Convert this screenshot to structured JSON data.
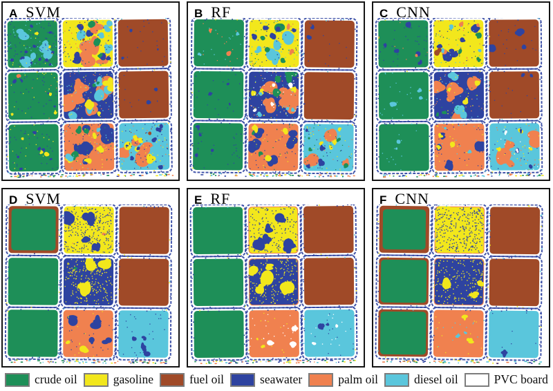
{
  "figure": {
    "classes": [
      {
        "key": "crude",
        "label": "crude oil",
        "color": "#1E8F58"
      },
      {
        "key": "gas",
        "label": "gasoline",
        "color": "#F2E71C"
      },
      {
        "key": "fuel",
        "label": "fuel oil",
        "color": "#A04A28"
      },
      {
        "key": "sea",
        "label": "seawater",
        "color": "#2E43A0"
      },
      {
        "key": "palm",
        "label": "palm oil",
        "color": "#F0814F"
      },
      {
        "key": "diesel",
        "label": "diesel oil",
        "color": "#5AC6DC"
      },
      {
        "key": "pvc",
        "label": "PVC board",
        "color": "#FFFFFF"
      }
    ],
    "panels": [
      {
        "id": "A",
        "method": "SVM",
        "cells": [
          {
            "base": "crude",
            "patches": [
              {
                "k": "diesel",
                "n": 6,
                "r": 5
              },
              {
                "k": "sea",
                "n": 12,
                "r": 1.5
              },
              {
                "k": "gas",
                "n": 2,
                "r": 2
              }
            ]
          },
          {
            "base": "gas",
            "patches": [
              {
                "k": "palm",
                "n": 5,
                "r": 8
              },
              {
                "k": "diesel",
                "n": 6,
                "r": 4
              },
              {
                "k": "sea",
                "n": 7,
                "r": 3
              },
              {
                "k": "crude",
                "n": 3,
                "r": 3
              },
              {
                "k": "fuel",
                "n": 1,
                "r": 2
              }
            ]
          },
          {
            "base": "fuel",
            "patches": [
              {
                "k": "sea",
                "n": 3,
                "r": 2
              }
            ]
          },
          {
            "base": "crude",
            "patches": [
              {
                "k": "palm",
                "n": 1,
                "r": 4
              },
              {
                "k": "gas",
                "n": 3,
                "r": 2
              },
              {
                "k": "sea",
                "n": 5,
                "r": 1.5
              }
            ]
          },
          {
            "base": "sea",
            "patches": [
              {
                "k": "palm",
                "n": 5,
                "r": 8
              },
              {
                "k": "diesel",
                "n": 5,
                "r": 5
              },
              {
                "k": "gas",
                "n": 4,
                "r": 4
              },
              {
                "k": "crude",
                "n": 2,
                "r": 3
              }
            ]
          },
          {
            "base": "fuel",
            "patches": [
              {
                "k": "sea",
                "n": 2,
                "r": 2
              }
            ]
          },
          {
            "base": "crude",
            "patches": [
              {
                "k": "sea",
                "n": 6,
                "r": 1.5
              },
              {
                "k": "gas",
                "n": 3,
                "r": 2
              }
            ]
          },
          {
            "base": "palm",
            "patches": [
              {
                "k": "sea",
                "n": 6,
                "r": 6
              },
              {
                "k": "crude",
                "n": 3,
                "r": 4
              },
              {
                "k": "gas",
                "n": 4,
                "r": 3
              },
              {
                "k": "diesel",
                "n": 2,
                "r": 3
              }
            ]
          },
          {
            "base": "diesel",
            "patches": [
              {
                "k": "palm",
                "n": 4,
                "r": 7
              },
              {
                "k": "gas",
                "n": 5,
                "r": 4
              },
              {
                "k": "sea",
                "n": 8,
                "r": 2
              },
              {
                "k": "fuel",
                "n": 1,
                "r": 2
              }
            ]
          }
        ]
      },
      {
        "id": "B",
        "method": "RF",
        "cells": [
          {
            "base": "crude",
            "patches": [
              {
                "k": "palm",
                "n": 2,
                "r": 2
              },
              {
                "k": "diesel",
                "n": 2,
                "r": 2
              }
            ]
          },
          {
            "base": "gas",
            "patches": [
              {
                "k": "diesel",
                "n": 5,
                "r": 5
              },
              {
                "k": "crude",
                "n": 4,
                "r": 4
              },
              {
                "k": "sea",
                "n": 6,
                "r": 3
              },
              {
                "k": "palm",
                "n": 2,
                "r": 3
              }
            ]
          },
          {
            "base": "fuel",
            "patches": [
              {
                "k": "sea",
                "n": 2,
                "r": 2
              }
            ]
          },
          {
            "base": "crude",
            "patches": [
              {
                "k": "sea",
                "n": 3,
                "r": 1.5
              }
            ]
          },
          {
            "base": "sea",
            "patches": [
              {
                "k": "palm",
                "n": 6,
                "r": 8
              },
              {
                "k": "crude",
                "n": 3,
                "r": 5
              },
              {
                "k": "gas",
                "n": 3,
                "r": 3
              },
              {
                "k": "diesel",
                "n": 4,
                "r": 2
              },
              {
                "k": "pvc",
                "n": 4,
                "r": 2
              }
            ]
          },
          {
            "base": "fuel",
            "patches": []
          },
          {
            "base": "crude",
            "patches": [
              {
                "k": "sea",
                "n": 4,
                "r": 2
              }
            ]
          },
          {
            "base": "palm",
            "patches": [
              {
                "k": "sea",
                "n": 6,
                "r": 5
              },
              {
                "k": "gas",
                "n": 3,
                "r": 3
              },
              {
                "k": "crude",
                "n": 2,
                "r": 2
              }
            ]
          },
          {
            "base": "diesel",
            "patches": [
              {
                "k": "palm",
                "n": 3,
                "r": 6
              },
              {
                "k": "gas",
                "n": 4,
                "r": 3
              },
              {
                "k": "crude",
                "n": 4,
                "r": 2
              },
              {
                "k": "sea",
                "n": 4,
                "r": 2
              }
            ]
          }
        ]
      },
      {
        "id": "C",
        "method": "CNN",
        "cells": [
          {
            "base": "crude",
            "patches": [
              {
                "k": "sea",
                "n": 5,
                "r": 3
              },
              {
                "k": "palm",
                "n": 1,
                "r": 2
              }
            ]
          },
          {
            "base": "gas",
            "patches": [
              {
                "k": "sea",
                "n": 5,
                "r": 4
              },
              {
                "k": "palm",
                "n": 3,
                "r": 3
              },
              {
                "k": "crude",
                "n": 3,
                "r": 3
              },
              {
                "k": "diesel",
                "n": 3,
                "r": 2
              },
              {
                "k": "fuel",
                "n": 1,
                "r": 3
              }
            ]
          },
          {
            "base": "fuel",
            "patches": [
              {
                "k": "sea",
                "n": 3,
                "r": 3
              }
            ]
          },
          {
            "base": "crude",
            "patches": [
              {
                "k": "diesel",
                "n": 3,
                "r": 3
              }
            ]
          },
          {
            "base": "sea",
            "patches": [
              {
                "k": "palm",
                "n": 6,
                "r": 6
              },
              {
                "k": "diesel",
                "n": 3,
                "r": 5
              },
              {
                "k": "gas",
                "n": 3,
                "r": 3
              },
              {
                "k": "crude",
                "n": 2,
                "r": 2
              }
            ]
          },
          {
            "base": "fuel",
            "patches": [
              {
                "k": "sea",
                "n": 2,
                "r": 2
              }
            ]
          },
          {
            "base": "crude",
            "patches": [
              {
                "k": "diesel",
                "n": 2,
                "r": 2
              }
            ]
          },
          {
            "base": "palm",
            "patches": [
              {
                "k": "sea",
                "n": 5,
                "r": 5
              },
              {
                "k": "gas",
                "n": 3,
                "r": 3
              },
              {
                "k": "diesel",
                "n": 2,
                "r": 2
              }
            ]
          },
          {
            "base": "diesel",
            "patches": [
              {
                "k": "palm",
                "n": 4,
                "r": 6
              },
              {
                "k": "gas",
                "n": 3,
                "r": 3
              },
              {
                "k": "sea",
                "n": 3,
                "r": 2
              },
              {
                "k": "pvc",
                "n": 2,
                "r": 2
              }
            ]
          }
        ]
      },
      {
        "id": "D",
        "method": "SVM",
        "cells": [
          {
            "base": "crude",
            "frame": {
              "k": "fuel",
              "w": 5
            },
            "patches": []
          },
          {
            "base": "gas",
            "speckle": {
              "k": "sea",
              "d": 250
            },
            "patches": [
              {
                "k": "sea",
                "n": 4,
                "r": 6
              },
              {
                "k": "palm",
                "n": 1,
                "r": 2
              }
            ]
          },
          {
            "base": "fuel",
            "patches": []
          },
          {
            "base": "crude",
            "patches": []
          },
          {
            "base": "sea",
            "speckle": {
              "k": "gas",
              "d": 200
            },
            "patches": [
              {
                "k": "gas",
                "n": 3,
                "r": 6
              },
              {
                "k": "crude",
                "n": 1,
                "r": 2
              }
            ]
          },
          {
            "base": "fuel",
            "patches": []
          },
          {
            "base": "crude",
            "patches": []
          },
          {
            "base": "palm",
            "patches": [
              {
                "k": "sea",
                "n": 4,
                "r": 5
              },
              {
                "k": "gas",
                "n": 2,
                "r": 3
              }
            ]
          },
          {
            "base": "diesel",
            "patches": [
              {
                "k": "sea",
                "n": 4,
                "r": 3
              }
            ]
          }
        ]
      },
      {
        "id": "E",
        "method": "RF",
        "cells": [
          {
            "base": "crude",
            "patches": []
          },
          {
            "base": "gas",
            "speckle": {
              "k": "sea",
              "d": 120
            },
            "patches": [
              {
                "k": "sea",
                "n": 7,
                "r": 5
              }
            ],
            "frame": {
              "k": "palm",
              "w": 2
            }
          },
          {
            "base": "fuel",
            "patches": []
          },
          {
            "base": "crude",
            "patches": []
          },
          {
            "base": "sea",
            "speckle": {
              "k": "gas",
              "d": 150
            },
            "patches": [
              {
                "k": "gas",
                "n": 6,
                "r": 6
              }
            ],
            "frame": {
              "k": "palm",
              "w": 2
            }
          },
          {
            "base": "fuel",
            "patches": []
          },
          {
            "base": "crude",
            "patches": []
          },
          {
            "base": "palm",
            "patches": [
              {
                "k": "pvc",
                "n": 3,
                "r": 3
              },
              {
                "k": "gas",
                "n": 2,
                "r": 2
              }
            ]
          },
          {
            "base": "diesel",
            "patches": [
              {
                "k": "sea",
                "n": 2,
                "r": 3
              },
              {
                "k": "pvc",
                "n": 2,
                "r": 2
              }
            ]
          }
        ]
      },
      {
        "id": "F",
        "method": "CNN",
        "cells": [
          {
            "base": "crude",
            "frame": {
              "k": "fuel",
              "w": 6
            },
            "patches": []
          },
          {
            "base": "gas",
            "speckle": {
              "k": "sea",
              "d": 300
            },
            "patches": [
              {
                "k": "gas",
                "n": 4,
                "r": 6
              }
            ],
            "frame": {
              "k": "palm",
              "w": 2
            }
          },
          {
            "base": "fuel",
            "patches": []
          },
          {
            "base": "crude",
            "frame": {
              "k": "fuel",
              "w": 4
            },
            "patches": []
          },
          {
            "base": "sea",
            "speckle": {
              "k": "gas",
              "d": 150
            },
            "patches": [
              {
                "k": "gas",
                "n": 3,
                "r": 5
              }
            ],
            "frame": {
              "k": "palm",
              "w": 2
            }
          },
          {
            "base": "fuel",
            "patches": []
          },
          {
            "base": "crude",
            "frame": {
              "k": "fuel",
              "w": 4
            },
            "patches": []
          },
          {
            "base": "palm",
            "patches": [
              {
                "k": "gas",
                "n": 2,
                "r": 3
              },
              {
                "k": "diesel",
                "n": 2,
                "r": 2
              }
            ]
          },
          {
            "base": "diesel",
            "patches": [
              {
                "k": "sea",
                "n": 1,
                "r": 4
              }
            ]
          }
        ]
      }
    ]
  }
}
